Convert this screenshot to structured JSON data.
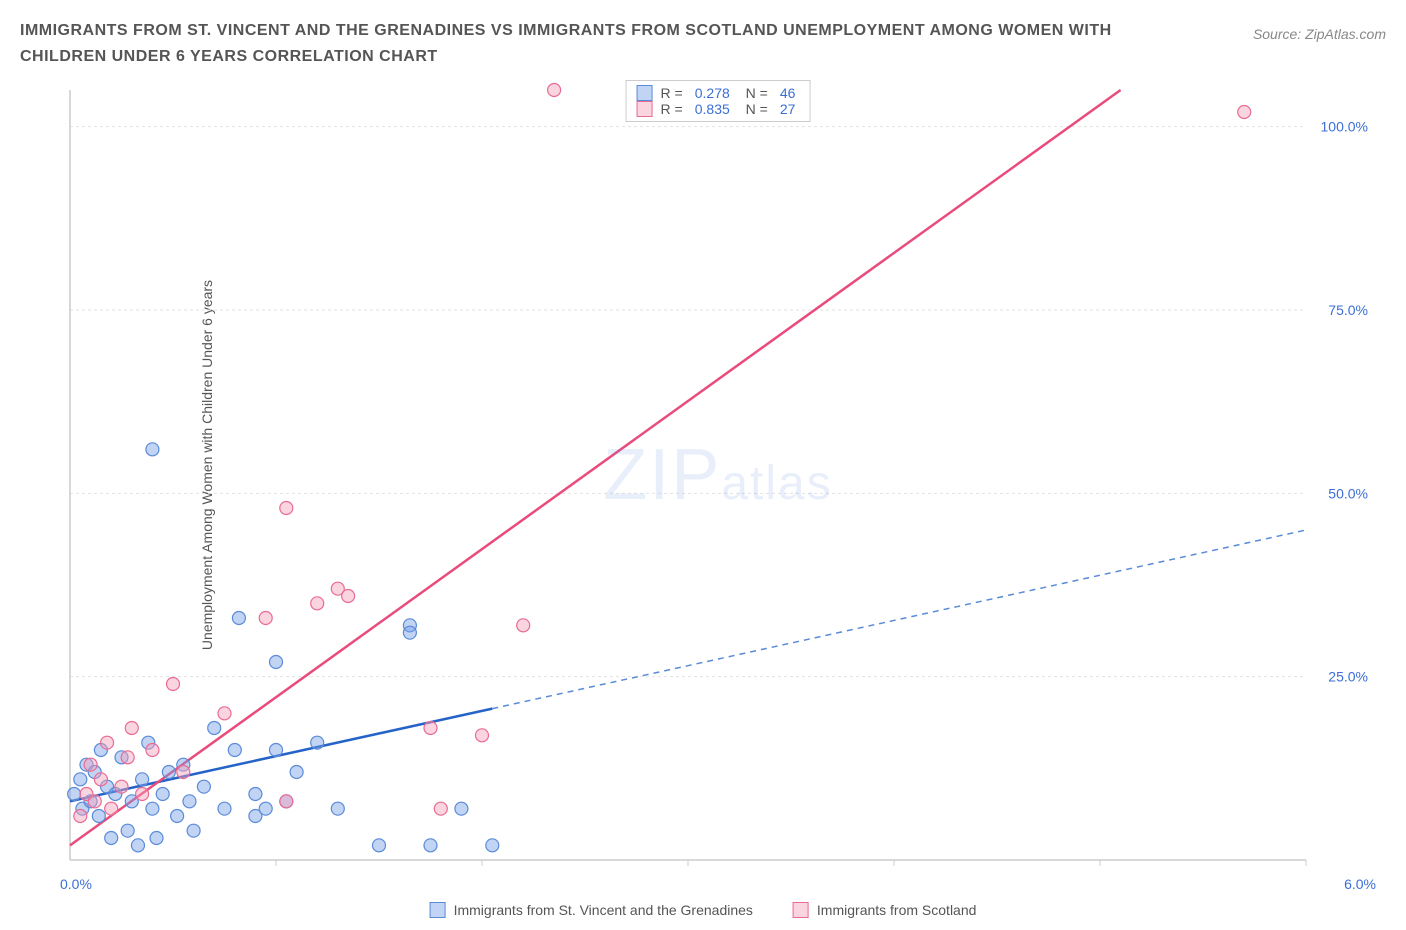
{
  "title": "IMMIGRANTS FROM ST. VINCENT AND THE GRENADINES VS IMMIGRANTS FROM SCOTLAND UNEMPLOYMENT AMONG WOMEN WITH CHILDREN UNDER 6 YEARS CORRELATION CHART",
  "source": "Source: ZipAtlas.com",
  "y_axis_label": "Unemployment Among Women with Children Under 6 years",
  "watermark_big": "ZIP",
  "watermark_small": "atlas",
  "chart": {
    "type": "scatter",
    "xlim": [
      0,
      6
    ],
    "ylim": [
      0,
      105
    ],
    "x_tick_min_label": "0.0%",
    "x_tick_max_label": "6.0%",
    "y_ticks": [
      25,
      50,
      75,
      100
    ],
    "y_tick_labels": [
      "25.0%",
      "50.0%",
      "75.0%",
      "100.0%"
    ],
    "y_minor_ticks": [
      1,
      2,
      3,
      4,
      5,
      6
    ],
    "background_color": "#ffffff",
    "grid_color": "#e2e2e2",
    "axis_color": "#cccccc",
    "series": [
      {
        "name": "Immigrants from St. Vincent and the Grenadines",
        "marker_color_fill": "rgba(120,160,230,0.45)",
        "marker_color_stroke": "#5a8bd8",
        "line_color": "#2563c9",
        "line_dash_color": "#5a8bd8",
        "R": "0.278",
        "N": "46",
        "marker_radius": 6.5,
        "trend": {
          "x1": 0,
          "y1": 8,
          "x2": 6,
          "y2": 45,
          "solid_until_x": 2.05
        },
        "points": [
          [
            0.02,
            9
          ],
          [
            0.05,
            11
          ],
          [
            0.06,
            7
          ],
          [
            0.08,
            13
          ],
          [
            0.1,
            8
          ],
          [
            0.12,
            12
          ],
          [
            0.14,
            6
          ],
          [
            0.15,
            15
          ],
          [
            0.18,
            10
          ],
          [
            0.2,
            3
          ],
          [
            0.22,
            9
          ],
          [
            0.25,
            14
          ],
          [
            0.28,
            4
          ],
          [
            0.3,
            8
          ],
          [
            0.33,
            2
          ],
          [
            0.35,
            11
          ],
          [
            0.38,
            16
          ],
          [
            0.4,
            7
          ],
          [
            0.42,
            3
          ],
          [
            0.45,
            9
          ],
          [
            0.48,
            12
          ],
          [
            0.4,
            56
          ],
          [
            0.52,
            6
          ],
          [
            0.55,
            13
          ],
          [
            0.58,
            8
          ],
          [
            0.6,
            4
          ],
          [
            0.65,
            10
          ],
          [
            0.7,
            18
          ],
          [
            0.75,
            7
          ],
          [
            0.8,
            15
          ],
          [
            0.82,
            33
          ],
          [
            0.9,
            9
          ],
          [
            0.9,
            6
          ],
          [
            0.95,
            7
          ],
          [
            1.0,
            27
          ],
          [
            1.0,
            15
          ],
          [
            1.05,
            8
          ],
          [
            1.1,
            12
          ],
          [
            1.2,
            16
          ],
          [
            1.3,
            7
          ],
          [
            1.5,
            2
          ],
          [
            1.65,
            32
          ],
          [
            1.65,
            31
          ],
          [
            1.75,
            2
          ],
          [
            1.9,
            7
          ],
          [
            2.05,
            2
          ]
        ]
      },
      {
        "name": "Immigrants from Scotland",
        "marker_color_fill": "rgba(245,160,185,0.45)",
        "marker_color_stroke": "#e96b94",
        "line_color": "#e94b7b",
        "R": "0.835",
        "N": "27",
        "marker_radius": 6.5,
        "trend": {
          "x1": 0,
          "y1": 2,
          "x2": 5.1,
          "y2": 105,
          "solid_until_x": 5.1
        },
        "points": [
          [
            0.05,
            6
          ],
          [
            0.08,
            9
          ],
          [
            0.1,
            13
          ],
          [
            0.12,
            8
          ],
          [
            0.15,
            11
          ],
          [
            0.18,
            16
          ],
          [
            0.2,
            7
          ],
          [
            0.25,
            10
          ],
          [
            0.28,
            14
          ],
          [
            0.3,
            18
          ],
          [
            0.35,
            9
          ],
          [
            0.4,
            15
          ],
          [
            0.5,
            24
          ],
          [
            0.55,
            12
          ],
          [
            0.75,
            20
          ],
          [
            0.95,
            33
          ],
          [
            1.05,
            8
          ],
          [
            1.05,
            48
          ],
          [
            1.2,
            35
          ],
          [
            1.3,
            37
          ],
          [
            1.35,
            36
          ],
          [
            1.75,
            18
          ],
          [
            1.8,
            7
          ],
          [
            2.0,
            17
          ],
          [
            2.2,
            32
          ],
          [
            2.35,
            105
          ],
          [
            5.7,
            102
          ]
        ]
      }
    ]
  },
  "bottom_legend": [
    {
      "label": "Immigrants from St. Vincent and the Grenadines",
      "fill": "rgba(120,160,230,0.45)",
      "stroke": "#5a8bd8"
    },
    {
      "label": "Immigrants from Scotland",
      "fill": "rgba(245,160,185,0.45)",
      "stroke": "#e96b94"
    }
  ]
}
